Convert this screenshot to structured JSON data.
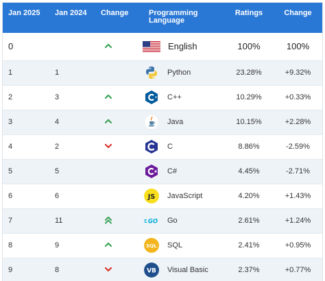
{
  "headers": {
    "jan2025": "Jan 2025",
    "jan2024": "Jan 2024",
    "change": "Change",
    "language": "Programming Language",
    "ratings": "Ratings",
    "change2": "Change"
  },
  "colors": {
    "header": "#2a78d6",
    "up": "#3aa356",
    "down": "#d9342b"
  },
  "rows": [
    {
      "jan2025": "0",
      "jan2024": "",
      "trend": "up",
      "language": "English",
      "icon": "us-flag-icon",
      "ratings": "100%",
      "change": "100%"
    },
    {
      "jan2025": "1",
      "jan2024": "1",
      "trend": "none",
      "language": "Python",
      "icon": "python-logo-icon",
      "ratings": "23.28%",
      "change": "+9.32%"
    },
    {
      "jan2025": "2",
      "jan2024": "3",
      "trend": "up",
      "language": "C++",
      "icon": "cpp-logo-icon",
      "ratings": "10.29%",
      "change": "+0.33%"
    },
    {
      "jan2025": "3",
      "jan2024": "4",
      "trend": "up",
      "language": "Java",
      "icon": "java-logo-icon",
      "ratings": "10.15%",
      "change": "+2.28%"
    },
    {
      "jan2025": "4",
      "jan2024": "2",
      "trend": "down",
      "language": "C",
      "icon": "c-logo-icon",
      "ratings": "8.86%",
      "change": "-2.59%"
    },
    {
      "jan2025": "5",
      "jan2024": "5",
      "trend": "none",
      "language": "C#",
      "icon": "csharp-logo-icon",
      "ratings": "4.45%",
      "change": "-2.71%"
    },
    {
      "jan2025": "6",
      "jan2024": "6",
      "trend": "none",
      "language": "JavaScript",
      "icon": "javascript-logo-icon",
      "ratings": "4.20%",
      "change": "+1.43%"
    },
    {
      "jan2025": "7",
      "jan2024": "11",
      "trend": "double-up",
      "language": "Go",
      "icon": "go-logo-icon",
      "ratings": "2.61%",
      "change": "+1.24%"
    },
    {
      "jan2025": "8",
      "jan2024": "9",
      "trend": "up",
      "language": "SQL",
      "icon": "sql-logo-icon",
      "ratings": "2.41%",
      "change": "+0.95%"
    },
    {
      "jan2025": "9",
      "jan2024": "8",
      "trend": "down",
      "language": "Visual Basic",
      "icon": "visual-basic-logo-icon",
      "ratings": "2.37%",
      "change": "+0.77%"
    }
  ]
}
